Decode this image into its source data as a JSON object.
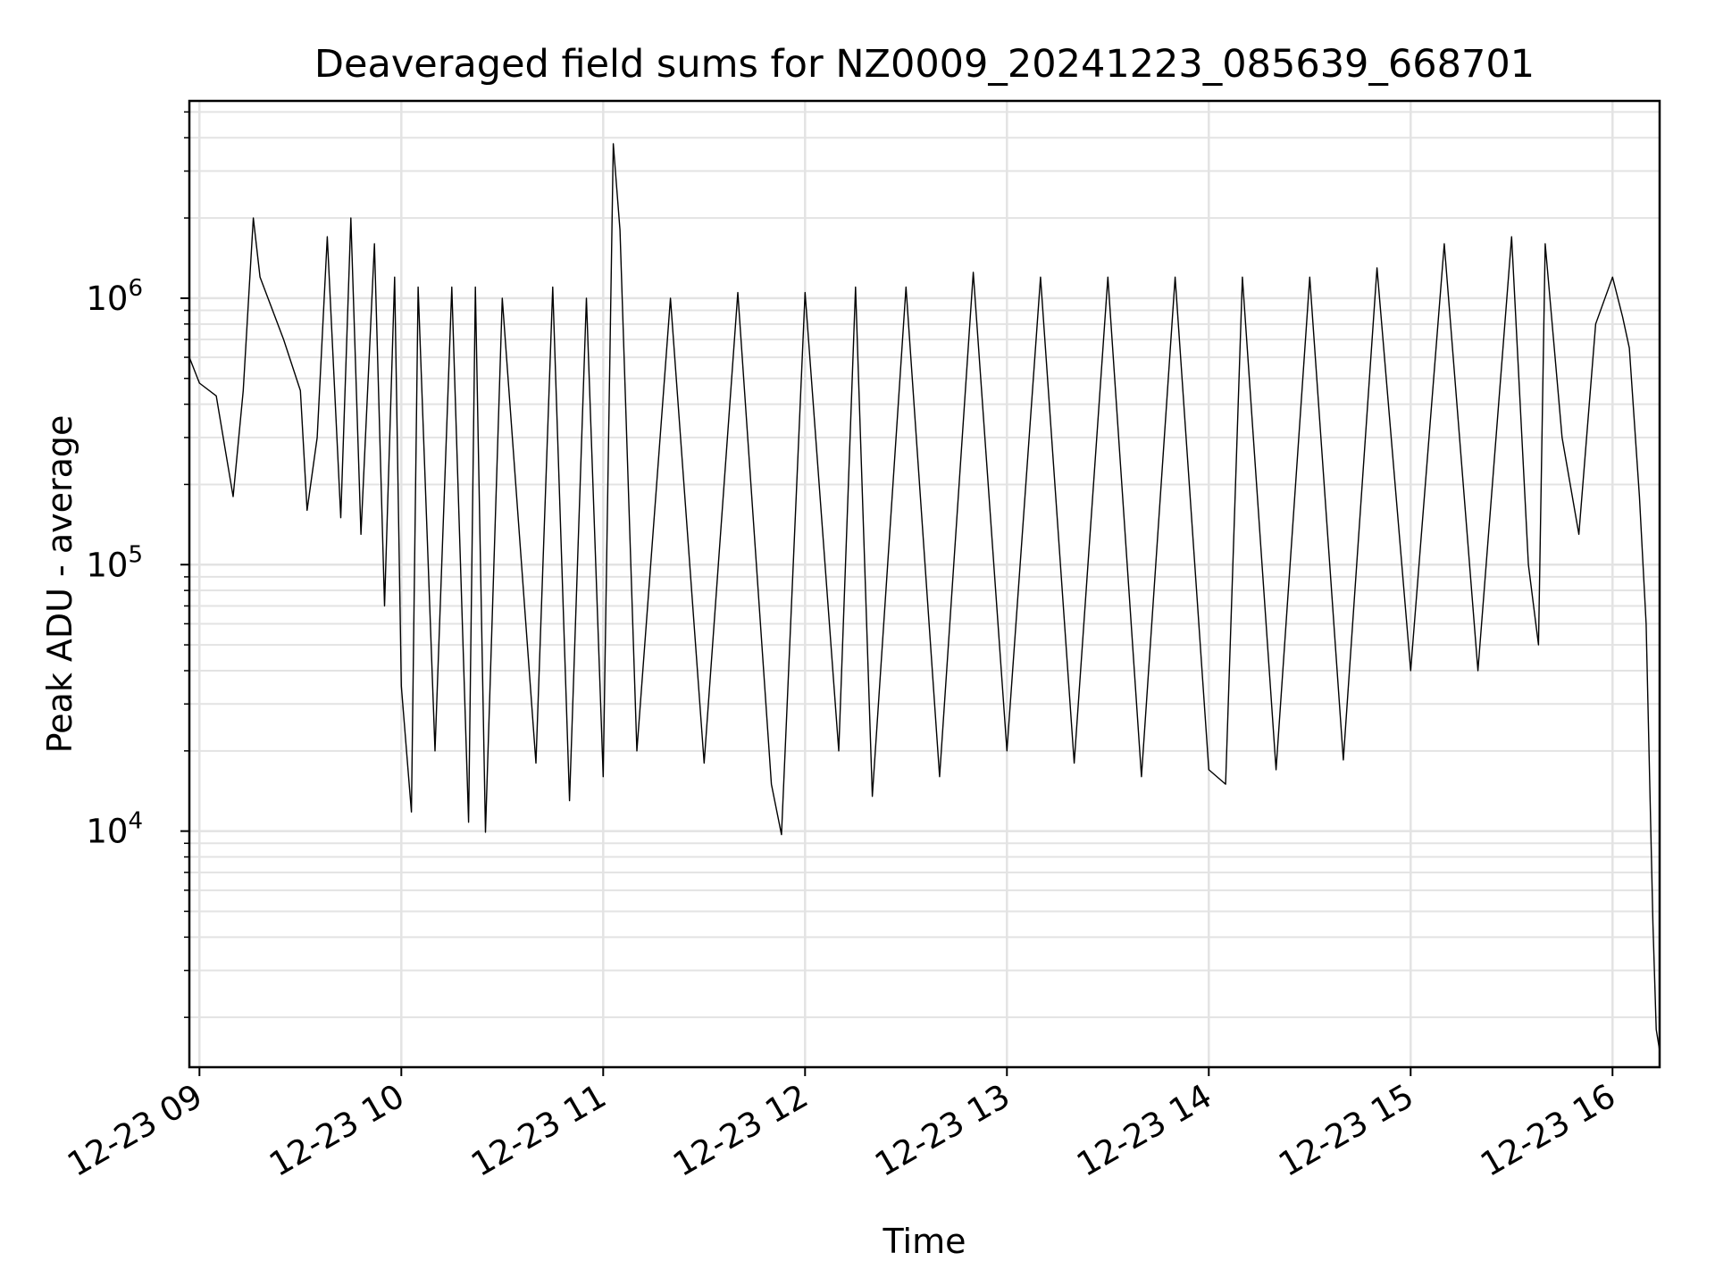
{
  "chart_data": {
    "type": "line",
    "title": "Deaveraged field sums for NZ0009_20241223_085639_668701",
    "xlabel": "Time",
    "ylabel": "Peak ADU - average",
    "yscale": "log",
    "ylim": [
      1300,
      5500000
    ],
    "xlim": [
      "2024-12-23 08:57",
      "2024-12-23 16:14"
    ],
    "grid": true,
    "x_tick_labels": [
      "12-23 09",
      "12-23 10",
      "12-23 11",
      "12-23 12",
      "12-23 13",
      "12-23 14",
      "12-23 15",
      "12-23 16"
    ],
    "y_tick_labels": [
      {
        "base": "10",
        "exp": "4",
        "value": 10000
      },
      {
        "base": "10",
        "exp": "5",
        "value": 100000
      },
      {
        "base": "10",
        "exp": "6",
        "value": 1000000
      }
    ],
    "series": [
      {
        "color": "#000000",
        "points": [
          [
            "2024-12-23 08:57",
            600000
          ],
          [
            "2024-12-23 09:00",
            480000
          ],
          [
            "2024-12-23 09:05",
            430000
          ],
          [
            "2024-12-23 09:10",
            180000
          ],
          [
            "2024-12-23 09:13",
            450000
          ],
          [
            "2024-12-23 09:16",
            2000000
          ],
          [
            "2024-12-23 09:18",
            1200000
          ],
          [
            "2024-12-23 09:25",
            700000
          ],
          [
            "2024-12-23 09:30",
            450000
          ],
          [
            "2024-12-23 09:32",
            160000
          ],
          [
            "2024-12-23 09:35",
            300000
          ],
          [
            "2024-12-23 09:38",
            1700000
          ],
          [
            "2024-12-23 09:42",
            150000
          ],
          [
            "2024-12-23 09:45",
            2000000
          ],
          [
            "2024-12-23 09:48",
            130000
          ],
          [
            "2024-12-23 09:52",
            1600000
          ],
          [
            "2024-12-23 09:55",
            70000
          ],
          [
            "2024-12-23 09:58",
            1200000
          ],
          [
            "2024-12-23 10:00",
            35000
          ],
          [
            "2024-12-23 10:03",
            11800
          ],
          [
            "2024-12-23 10:05",
            1100000
          ],
          [
            "2024-12-23 10:10",
            20000
          ],
          [
            "2024-12-23 10:15",
            1100000
          ],
          [
            "2024-12-23 10:20",
            10800
          ],
          [
            "2024-12-23 10:22",
            1100000
          ],
          [
            "2024-12-23 10:25",
            9900
          ],
          [
            "2024-12-23 10:30",
            1000000
          ],
          [
            "2024-12-23 10:40",
            18000
          ],
          [
            "2024-12-23 10:45",
            1100000
          ],
          [
            "2024-12-23 10:50",
            13000
          ],
          [
            "2024-12-23 10:55",
            1000000
          ],
          [
            "2024-12-23 11:00",
            16000
          ],
          [
            "2024-12-23 11:03",
            3800000
          ],
          [
            "2024-12-23 11:05",
            1800000
          ],
          [
            "2024-12-23 11:10",
            20000
          ],
          [
            "2024-12-23 11:20",
            1000000
          ],
          [
            "2024-12-23 11:30",
            18000
          ],
          [
            "2024-12-23 11:40",
            1050000
          ],
          [
            "2024-12-23 11:50",
            15000
          ],
          [
            "2024-12-23 11:53",
            9700
          ],
          [
            "2024-12-23 12:00",
            1050000
          ],
          [
            "2024-12-23 12:10",
            20000
          ],
          [
            "2024-12-23 12:15",
            1100000
          ],
          [
            "2024-12-23 12:20",
            13500
          ],
          [
            "2024-12-23 12:30",
            1100000
          ],
          [
            "2024-12-23 12:40",
            16000
          ],
          [
            "2024-12-23 12:50",
            1250000
          ],
          [
            "2024-12-23 13:00",
            20000
          ],
          [
            "2024-12-23 13:10",
            1200000
          ],
          [
            "2024-12-23 13:20",
            18000
          ],
          [
            "2024-12-23 13:30",
            1200000
          ],
          [
            "2024-12-23 13:40",
            16000
          ],
          [
            "2024-12-23 13:50",
            1200000
          ],
          [
            "2024-12-23 14:00",
            17000
          ],
          [
            "2024-12-23 14:05",
            15000
          ],
          [
            "2024-12-23 14:10",
            1200000
          ],
          [
            "2024-12-23 14:20",
            17000
          ],
          [
            "2024-12-23 14:30",
            1200000
          ],
          [
            "2024-12-23 14:40",
            18500
          ],
          [
            "2024-12-23 14:50",
            1300000
          ],
          [
            "2024-12-23 15:00",
            40000
          ],
          [
            "2024-12-23 15:10",
            1600000
          ],
          [
            "2024-12-23 15:20",
            40000
          ],
          [
            "2024-12-23 15:30",
            1700000
          ],
          [
            "2024-12-23 15:35",
            100000
          ],
          [
            "2024-12-23 15:38",
            50000
          ],
          [
            "2024-12-23 15:40",
            1600000
          ],
          [
            "2024-12-23 15:45",
            300000
          ],
          [
            "2024-12-23 15:50",
            130000
          ],
          [
            "2024-12-23 15:55",
            800000
          ],
          [
            "2024-12-23 16:00",
            1200000
          ],
          [
            "2024-12-23 16:03",
            850000
          ],
          [
            "2024-12-23 16:05",
            650000
          ],
          [
            "2024-12-23 16:08",
            180000
          ],
          [
            "2024-12-23 16:10",
            60000
          ],
          [
            "2024-12-23 16:12",
            4500
          ],
          [
            "2024-12-23 16:13",
            1800
          ],
          [
            "2024-12-23 16:14",
            1500
          ]
        ]
      }
    ]
  }
}
